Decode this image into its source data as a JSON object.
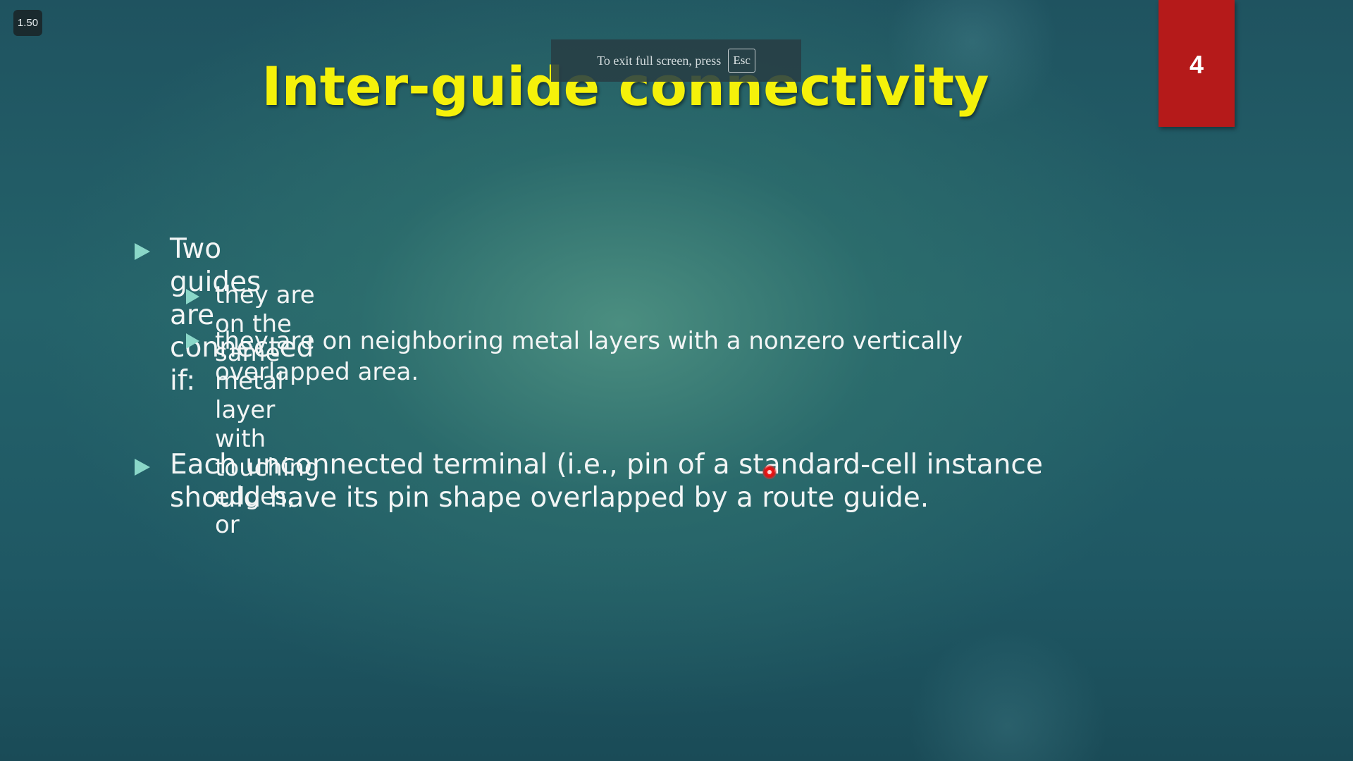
{
  "player": {
    "speed_label": "1.50"
  },
  "fullscreen_notice": {
    "text": "To exit full screen, press",
    "key": "Esc"
  },
  "slide": {
    "title": "Inter-guide connectivity",
    "number": "4",
    "bullets": [
      {
        "text": "Two guides are connected if:",
        "sub_bullets": [
          {
            "text": "they are on the same metal layer with touching edges, or"
          },
          {
            "text": "they are on neighboring metal layers with a nonzero vertically overlapped area."
          }
        ]
      },
      {
        "text": "Each unconnected terminal (i.e., pin of a standard-cell instance should have its pin shape overlapped by a route guide."
      }
    ]
  },
  "colors": {
    "title": "#f5f10a",
    "slide_number_bg": "#b51a1a",
    "bullet_marker": "#8ad7c8",
    "body_text": "#f2f5f5",
    "laser_pointer": "#e01010"
  },
  "icons": {
    "bullet_marker": "triangle-right-icon",
    "pointer": "laser-pointer-icon"
  }
}
